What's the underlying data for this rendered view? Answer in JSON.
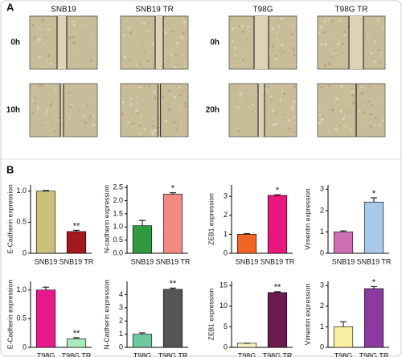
{
  "panel_a": {
    "label": "A",
    "groups": [
      {
        "columns": [
          "SNB19",
          "SNB19 TR"
        ],
        "rows": [
          "0h",
          "10h"
        ]
      },
      {
        "columns": [
          "T98G",
          "T98G TR"
        ],
        "rows": [
          "0h",
          "20h"
        ]
      }
    ]
  },
  "panel_b": {
    "label": "B"
  },
  "chart_data": [
    {
      "type": "bar",
      "ylabel": "E-Cadherin expression",
      "categories": [
        "SNB19",
        "SNB19 TR"
      ],
      "values": [
        1.0,
        0.35
      ],
      "errors": [
        0.01,
        0.02
      ],
      "colors": [
        "#c9c07c",
        "#a3191d"
      ],
      "annotations": [
        null,
        "**"
      ],
      "ylim": [
        0,
        1.1
      ],
      "yticks": [
        0,
        0.5,
        {
          "value": 1,
          "label": "1.0"
        }
      ]
    },
    {
      "type": "bar",
      "ylabel": "N-cadherin expression",
      "categories": [
        "SNB19",
        "SNB19 TR"
      ],
      "values": [
        1.05,
        2.25
      ],
      "errors": [
        0.2,
        0.05
      ],
      "colors": [
        "#2f9a3f",
        "#f28a84"
      ],
      "annotations": [
        null,
        "*"
      ],
      "ylim": [
        0,
        2.6
      ],
      "yticks": [
        {
          "value": 0,
          "label": "0.0"
        },
        0.5,
        {
          "value": 1,
          "label": "1.0"
        },
        1.5,
        {
          "value": 2,
          "label": "2.0"
        },
        2.5
      ]
    },
    {
      "type": "bar",
      "ylabel": "ZEB1 expression",
      "categories": [
        "SNB19",
        "SNB19 TR"
      ],
      "values": [
        1.0,
        3.05
      ],
      "errors": [
        0.03,
        0.03
      ],
      "colors": [
        "#f26522",
        "#e8187c"
      ],
      "annotations": [
        null,
        "*"
      ],
      "ylim": [
        0,
        3.6
      ],
      "yticks": [
        0,
        1,
        2,
        3
      ]
    },
    {
      "type": "bar",
      "ylabel": "Vimentin expression",
      "categories": [
        "SNB19",
        "SNB19 TR"
      ],
      "values": [
        1.0,
        2.4
      ],
      "errors": [
        0.05,
        0.2
      ],
      "colors": [
        "#d070b4",
        "#a9c9ea"
      ],
      "annotations": [
        null,
        "*"
      ],
      "ylim": [
        0,
        3.2
      ],
      "yticks": [
        0,
        1,
        2,
        3
      ]
    },
    {
      "type": "bar",
      "ylabel": "E-Cadherin expression",
      "categories": [
        "T98G",
        "T98G TR"
      ],
      "values": [
        1.0,
        0.15
      ],
      "errors": [
        0.05,
        0.02
      ],
      "colors": [
        "#e8198c",
        "#a9e9bb"
      ],
      "annotations": [
        null,
        "**"
      ],
      "ylim": [
        0,
        1.15
      ],
      "yticks": [
        0,
        0.5,
        {
          "value": 1,
          "label": "1.0"
        }
      ]
    },
    {
      "type": "bar",
      "ylabel": "N-Cadherin expression",
      "categories": [
        "T98G",
        "T98G TR"
      ],
      "values": [
        1.0,
        4.4
      ],
      "errors": [
        0.1,
        0.1
      ],
      "colors": [
        "#6ec9a0",
        "#555555"
      ],
      "annotations": [
        null,
        "**"
      ],
      "ylim": [
        0,
        5
      ],
      "yticks": [
        0,
        1,
        2,
        3,
        4
      ]
    },
    {
      "type": "bar",
      "ylabel": "ZEB1 expression",
      "categories": [
        "T98G",
        "T98G TR"
      ],
      "values": [
        1,
        13.3
      ],
      "errors": [
        0,
        0.2
      ],
      "colors": [
        "#f6f0c4",
        "#6a1a4c"
      ],
      "annotations": [
        null,
        "**"
      ],
      "ylim": [
        0,
        16
      ],
      "yticks": [
        0,
        5,
        10,
        15
      ]
    },
    {
      "type": "bar",
      "ylabel": "Vimentin expression",
      "categories": [
        "T98G",
        "T98G TR"
      ],
      "values": [
        1.0,
        2.85
      ],
      "errors": [
        0.25,
        0.1
      ],
      "colors": [
        "#f8f0a0",
        "#8b3ba0"
      ],
      "annotations": [
        null,
        "*"
      ],
      "ylim": [
        0,
        3.2
      ],
      "yticks": [
        0,
        1,
        2,
        3
      ]
    }
  ]
}
